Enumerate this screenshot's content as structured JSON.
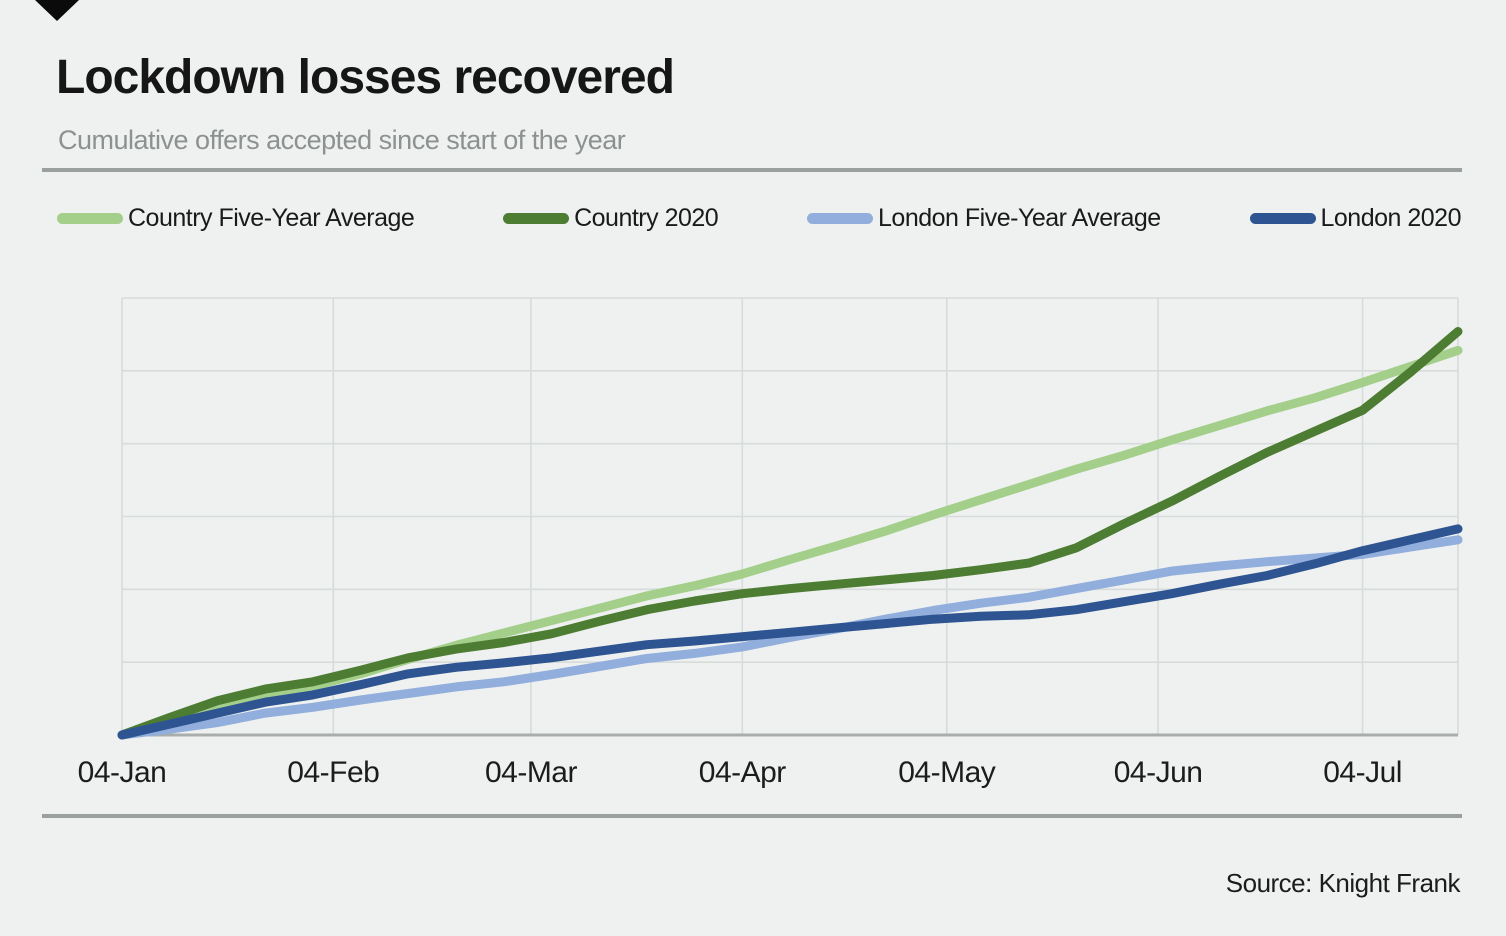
{
  "page": {
    "background": "#eef1ef"
  },
  "header": {
    "logo_icon": "down-triangle",
    "title": "Lockdown losses recovered",
    "subtitle": "Cumulative offers accepted since start of the year"
  },
  "footer": {
    "source": "Source: Knight Frank"
  },
  "colors": {
    "country_five_year_average": "#a3cf8b",
    "country_2020": "#4d7c33",
    "london_five_year_average": "#91aedd",
    "london_2020": "#2e5492",
    "gridline": "#d7dbd9",
    "axis": "#a9aeac",
    "divider": "#9aa09e"
  },
  "chart_data": {
    "type": "line",
    "title": "Lockdown losses recovered",
    "subtitle": "Cumulative offers accepted since start of the year",
    "source": "Source: Knight Frank",
    "legend_position": "top",
    "grid": true,
    "x_description": "Dates, weekly points from 4 Jan 2020 to ~19 Jul 2020 (days since 4 Jan)",
    "x_days": [
      0,
      7,
      14,
      21,
      28,
      35,
      42,
      49,
      56,
      63,
      70,
      77,
      84,
      91,
      98,
      105,
      112,
      119,
      126,
      133,
      140,
      147,
      154,
      161,
      168,
      175,
      182,
      189,
      196
    ],
    "x_tick_labels": [
      "04-Jan",
      "04-Feb",
      "04-Mar",
      "04-Apr",
      "04-May",
      "04-Jun",
      "04-Jul"
    ],
    "x_tick_days": [
      0,
      31,
      60,
      91,
      121,
      152,
      182
    ],
    "x_range_days": [
      0,
      196
    ],
    "ylabel": "",
    "y_axis_note": "No numeric y tick labels shown; values below are in gridline units (1 unit = 1 horizontal gridline row), cumulative offers accepted indexed since start of year",
    "ylim": [
      0,
      6
    ],
    "series": [
      {
        "name": "Country Five-Year Average",
        "color": "#a3cf8b",
        "values": [
          0,
          0.2,
          0.4,
          0.54,
          0.67,
          0.84,
          1.04,
          1.23,
          1.4,
          1.57,
          1.74,
          1.91,
          2.05,
          2.21,
          2.41,
          2.6,
          2.8,
          3.02,
          3.23,
          3.44,
          3.65,
          3.84,
          4.05,
          4.25,
          4.45,
          4.63,
          4.84,
          5.06,
          5.28
        ]
      },
      {
        "name": "Country 2020",
        "color": "#4d7c33",
        "values": [
          0,
          0.24,
          0.47,
          0.63,
          0.73,
          0.89,
          1.06,
          1.18,
          1.27,
          1.39,
          1.56,
          1.72,
          1.84,
          1.94,
          2.01,
          2.07,
          2.13,
          2.19,
          2.27,
          2.36,
          2.57,
          2.9,
          3.21,
          3.55,
          3.88,
          4.17,
          4.46,
          4.98,
          5.54
        ]
      },
      {
        "name": "London Five-Year Average",
        "color": "#91aedd",
        "values": [
          0,
          0.08,
          0.17,
          0.3,
          0.38,
          0.48,
          0.57,
          0.66,
          0.73,
          0.83,
          0.94,
          1.05,
          1.12,
          1.21,
          1.34,
          1.46,
          1.59,
          1.71,
          1.81,
          1.89,
          2.01,
          2.13,
          2.25,
          2.32,
          2.38,
          2.43,
          2.48,
          2.58,
          2.68
        ]
      },
      {
        "name": "London 2020",
        "color": "#2e5492",
        "values": [
          0,
          0.15,
          0.3,
          0.45,
          0.55,
          0.69,
          0.84,
          0.93,
          0.99,
          1.06,
          1.15,
          1.24,
          1.29,
          1.35,
          1.41,
          1.47,
          1.53,
          1.59,
          1.63,
          1.65,
          1.72,
          1.83,
          1.94,
          2.07,
          2.19,
          2.35,
          2.53,
          2.68,
          2.83
        ]
      }
    ]
  }
}
